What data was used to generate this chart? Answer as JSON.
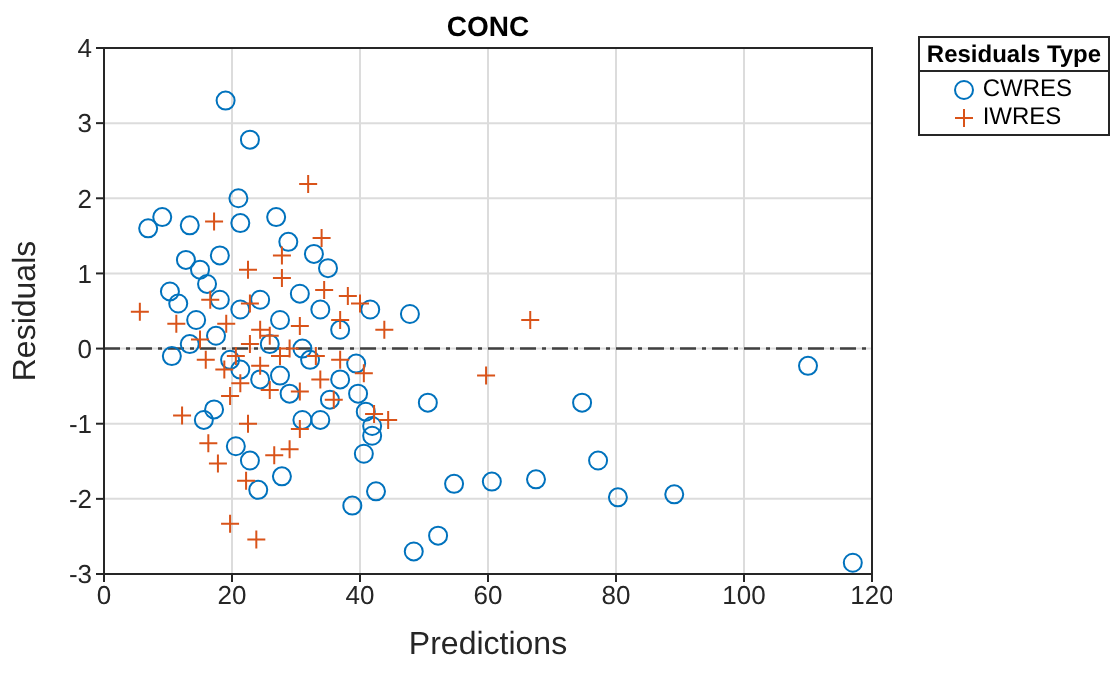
{
  "chart_data": {
    "type": "scatter",
    "title": "CONC",
    "xlabel": "Predictions",
    "ylabel": "Residuals",
    "legend_title": "Residuals Type",
    "legend": "top right",
    "grid": true,
    "xlim": [
      0,
      120
    ],
    "xticks": [
      0,
      20,
      40,
      60,
      80,
      100,
      120
    ],
    "ylim": [
      -3,
      4
    ],
    "yticks": [
      -3,
      -2,
      -1,
      0,
      1,
      2,
      3,
      4
    ],
    "ref_lines": [
      {
        "axis": "y",
        "value": 0,
        "color": "#404040",
        "line_style": "dashed"
      }
    ],
    "series": [
      {
        "name": "CWRES",
        "color": "#0072bd",
        "marker": "circle",
        "x": [
          19,
          22.8,
          21,
          21.3,
          26.9,
          6.9,
          9.1,
          13.4,
          28.8,
          32.8,
          35,
          12.8,
          15,
          18.1,
          16.1,
          10.3,
          11.6,
          14.4,
          18.1,
          21.3,
          24.4,
          27.5,
          30.6,
          33.8,
          36.9,
          47.8,
          41.6,
          10.6,
          13.4,
          21.3,
          24.4,
          27.5,
          32.2,
          35.3,
          33.8,
          15.6,
          17.2,
          20.6,
          22.8,
          27.8,
          24.1,
          38.8,
          39.7,
          40.9,
          41.9,
          41.9,
          40.6,
          42.5,
          48.4,
          52.2,
          54.7,
          60.6,
          67.5,
          50.6,
          74.7,
          77.2,
          80.3,
          89.1,
          110,
          117,
          31,
          19.7,
          17.5,
          25.9,
          29,
          31,
          36.9,
          39.4
        ],
        "values": [
          3.3,
          2.78,
          2.0,
          1.67,
          1.75,
          1.6,
          1.75,
          1.64,
          1.42,
          1.26,
          1.07,
          1.18,
          1.05,
          1.24,
          0.86,
          0.76,
          0.6,
          0.38,
          0.65,
          0.52,
          0.65,
          0.38,
          0.73,
          0.52,
          0.25,
          0.46,
          0.52,
          -0.1,
          0.06,
          -0.28,
          -0.41,
          -0.36,
          -0.15,
          -0.68,
          -0.95,
          -0.95,
          -0.81,
          -1.3,
          -1.49,
          -1.7,
          -1.88,
          -2.09,
          -0.6,
          -0.84,
          -1.03,
          -1.16,
          -1.4,
          -1.9,
          -2.7,
          -2.49,
          -1.8,
          -1.77,
          -1.74,
          -0.72,
          -0.72,
          -1.49,
          -1.98,
          -1.94,
          -0.23,
          -2.85,
          0,
          -0.15,
          0.17,
          0.06,
          -0.6,
          -0.95,
          -0.41,
          -0.2
        ]
      },
      {
        "name": "IWRES",
        "color": "#d95319",
        "marker": "cross",
        "x": [
          31.9,
          17.2,
          34,
          27.8,
          27.8,
          22.5,
          5.6,
          11.3,
          19.1,
          24.4,
          30.6,
          36.9,
          40,
          43.8,
          66.6,
          59.7,
          18.8,
          20.6,
          22.8,
          25.9,
          29,
          33.1,
          36.9,
          40.6,
          42.2,
          44.4,
          12.2,
          16.3,
          17.8,
          19.7,
          23.8,
          22.2,
          26.6,
          29,
          30.6,
          22.5,
          19.7,
          25.9,
          30.6,
          33.8,
          15,
          16.6,
          34.4,
          38.1,
          22.8,
          24.4,
          27.5,
          21.3,
          35.9,
          15.9
        ],
        "values": [
          2.19,
          1.69,
          1.47,
          1.24,
          0.94,
          1.05,
          0.49,
          0.33,
          0.33,
          0.25,
          0.3,
          0.38,
          0.6,
          0.25,
          0.38,
          -0.36,
          -0.28,
          -0.1,
          0.06,
          0.17,
          0,
          -0.1,
          -0.15,
          -0.33,
          -0.87,
          -0.95,
          -0.89,
          -1.26,
          -1.53,
          -2.33,
          -2.54,
          -1.76,
          -1.42,
          -1.34,
          -1.07,
          -1.0,
          -0.63,
          -0.55,
          -0.57,
          -0.41,
          0.12,
          0.65,
          0.78,
          0.7,
          0.6,
          -0.23,
          -0.1,
          -0.46,
          -0.68,
          -0.15
        ]
      }
    ]
  }
}
